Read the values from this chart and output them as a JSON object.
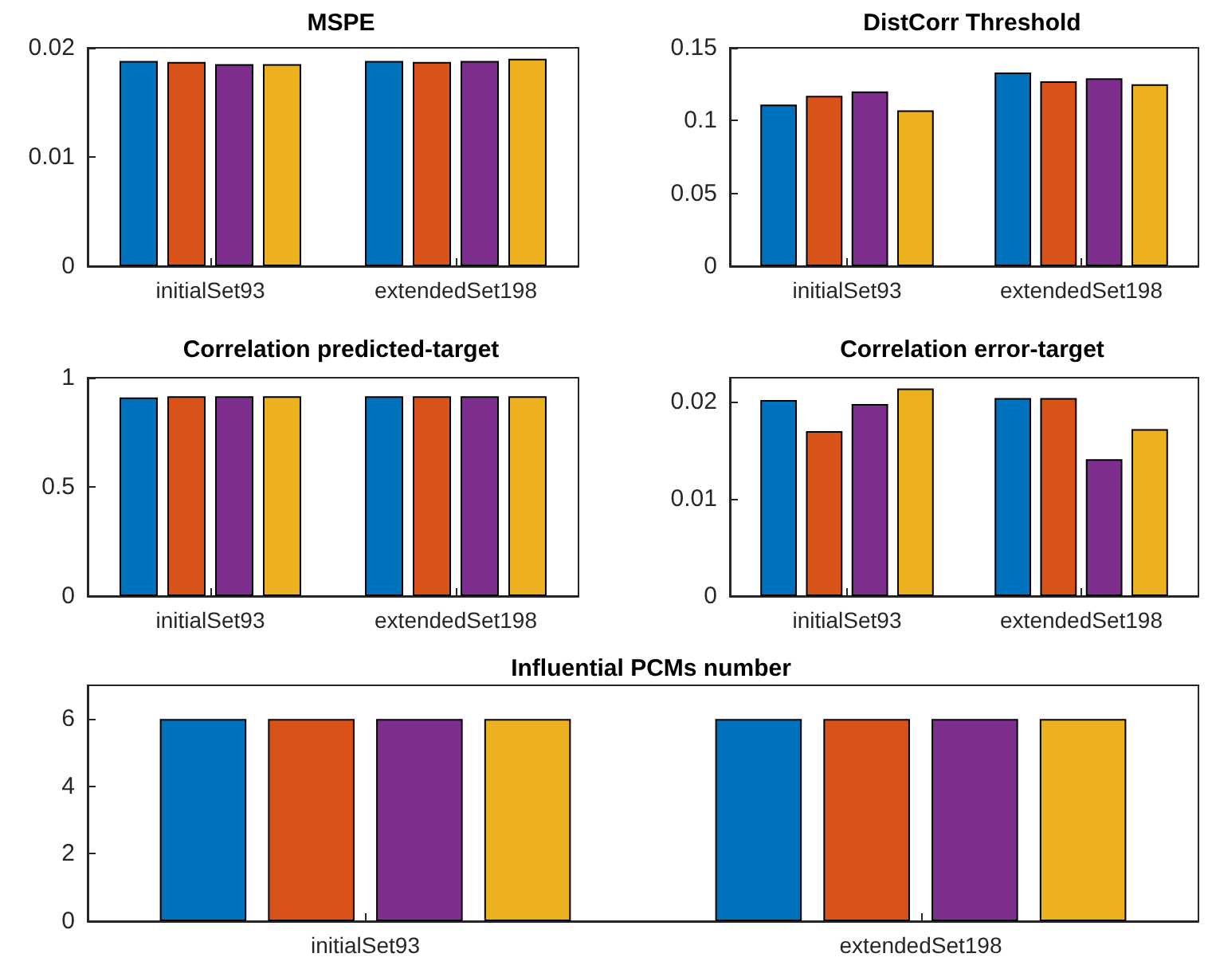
{
  "chart_data": [
    {
      "type": "bar",
      "title": "MSPE",
      "categories": [
        "initialSet93",
        "extendedSet198"
      ],
      "series": [
        {
          "color": "#0072bd",
          "values": [
            0.0188,
            0.0188
          ]
        },
        {
          "color": "#d95319",
          "values": [
            0.0187,
            0.0187
          ]
        },
        {
          "color": "#7e2f8e",
          "values": [
            0.0185,
            0.0188
          ]
        },
        {
          "color": "#edb120",
          "values": [
            0.0185,
            0.019
          ]
        }
      ],
      "ylim": [
        0,
        0.02
      ],
      "yticks": [
        0,
        0.01,
        0.02
      ]
    },
    {
      "type": "bar",
      "title": "DistCorr Threshold",
      "categories": [
        "initialSet93",
        "extendedSet198"
      ],
      "series": [
        {
          "color": "#0072bd",
          "values": [
            0.111,
            0.133
          ]
        },
        {
          "color": "#d95319",
          "values": [
            0.117,
            0.127
          ]
        },
        {
          "color": "#7e2f8e",
          "values": [
            0.12,
            0.129
          ]
        },
        {
          "color": "#edb120",
          "values": [
            0.107,
            0.125
          ]
        }
      ],
      "ylim": [
        0,
        0.15
      ],
      "yticks": [
        0,
        0.05,
        0.1,
        0.15
      ]
    },
    {
      "type": "bar",
      "title": "Correlation predicted-target",
      "categories": [
        "initialSet93",
        "extendedSet198"
      ],
      "series": [
        {
          "color": "#0072bd",
          "values": [
            0.91,
            0.915
          ]
        },
        {
          "color": "#d95319",
          "values": [
            0.915,
            0.915
          ]
        },
        {
          "color": "#7e2f8e",
          "values": [
            0.915,
            0.915
          ]
        },
        {
          "color": "#edb120",
          "values": [
            0.915,
            0.915
          ]
        }
      ],
      "ylim": [
        0,
        1
      ],
      "yticks": [
        0,
        0.5,
        1
      ]
    },
    {
      "type": "bar",
      "title": "Correlation error-target",
      "categories": [
        "initialSet93",
        "extendedSet198"
      ],
      "series": [
        {
          "color": "#0072bd",
          "values": [
            0.0202,
            0.0204
          ]
        },
        {
          "color": "#d95319",
          "values": [
            0.017,
            0.0204
          ]
        },
        {
          "color": "#7e2f8e",
          "values": [
            0.0198,
            0.0141
          ]
        },
        {
          "color": "#edb120",
          "values": [
            0.0214,
            0.0172
          ]
        }
      ],
      "ylim": [
        0,
        0.0225
      ],
      "yticks": [
        0,
        0.01,
        0.02
      ]
    },
    {
      "type": "bar",
      "title": "Influential PCMs number",
      "categories": [
        "initialSet93",
        "extendedSet198"
      ],
      "series": [
        {
          "color": "#0072bd",
          "values": [
            6,
            6
          ]
        },
        {
          "color": "#d95319",
          "values": [
            6,
            6
          ]
        },
        {
          "color": "#7e2f8e",
          "values": [
            6,
            6
          ]
        },
        {
          "color": "#edb120",
          "values": [
            6,
            6
          ]
        }
      ],
      "ylim": [
        0,
        7
      ],
      "yticks": [
        0,
        2,
        4,
        6
      ]
    }
  ]
}
